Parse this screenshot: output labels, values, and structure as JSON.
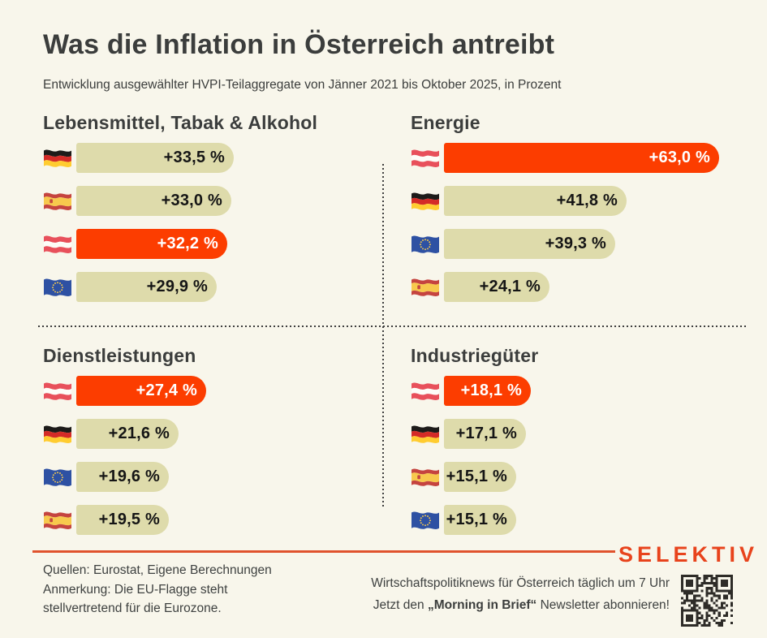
{
  "poster": {
    "title": "Was die Inflation in Österreich antreibt",
    "subtitle": "Entwicklung ausgewählter HVPI-Teilaggregate von Jänner 2021 bis Oktober 2025, in Prozent"
  },
  "colors": {
    "background": "#F8F6EB",
    "bar_default": "#DEDBAB",
    "bar_highlight": "#FC3D00",
    "heading_text": "#3B3D3C",
    "value_text_dark": "#151515",
    "value_text_light": "#FFFFFF",
    "accent_orange": "#E8431C",
    "divider": "#3F3F3F"
  },
  "chart_data": [
    {
      "type": "bar",
      "orientation": "horizontal",
      "title": "Lebensmittel, Tabak & Alkohol",
      "unit": "percent",
      "bars": [
        {
          "country": "Deutschland",
          "flag": "de",
          "flag_icon": "flag-germany-icon",
          "value": 33.5,
          "label": "+33,5 %",
          "highlight": false
        },
        {
          "country": "Spanien",
          "flag": "es",
          "flag_icon": "flag-spain-icon",
          "value": 33.0,
          "label": "+33,0 %",
          "highlight": false
        },
        {
          "country": "Österreich",
          "flag": "at",
          "flag_icon": "flag-austria-icon",
          "value": 32.2,
          "label": "+32,2 %",
          "highlight": true
        },
        {
          "country": "Eurozone",
          "flag": "eu",
          "flag_icon": "flag-european-union-icon",
          "value": 29.9,
          "label": "+29,9 %",
          "highlight": false
        }
      ]
    },
    {
      "type": "bar",
      "orientation": "horizontal",
      "title": "Energie",
      "unit": "percent",
      "bars": [
        {
          "country": "Österreich",
          "flag": "at",
          "flag_icon": "flag-austria-icon",
          "value": 63.0,
          "label": "+63,0 %",
          "highlight": true
        },
        {
          "country": "Deutschland",
          "flag": "de",
          "flag_icon": "flag-germany-icon",
          "value": 41.8,
          "label": "+41,8 %",
          "highlight": false
        },
        {
          "country": "Eurozone",
          "flag": "eu",
          "flag_icon": "flag-european-union-icon",
          "value": 39.3,
          "label": "+39,3 %",
          "highlight": false
        },
        {
          "country": "Spanien",
          "flag": "es",
          "flag_icon": "flag-spain-icon",
          "value": 24.1,
          "label": "+24,1 %",
          "highlight": false
        }
      ]
    },
    {
      "type": "bar",
      "orientation": "horizontal",
      "title": "Dienstleistungen",
      "unit": "percent",
      "bars": [
        {
          "country": "Österreich",
          "flag": "at",
          "flag_icon": "flag-austria-icon",
          "value": 27.4,
          "label": "+27,4 %",
          "highlight": true
        },
        {
          "country": "Deutschland",
          "flag": "de",
          "flag_icon": "flag-germany-icon",
          "value": 21.6,
          "label": "+21,6 %",
          "highlight": false
        },
        {
          "country": "Eurozone",
          "flag": "eu",
          "flag_icon": "flag-european-union-icon",
          "value": 19.6,
          "label": "+19,6 %",
          "highlight": false
        },
        {
          "country": "Spanien",
          "flag": "es",
          "flag_icon": "flag-spain-icon",
          "value": 19.5,
          "label": "+19,5 %",
          "highlight": false
        }
      ]
    },
    {
      "type": "bar",
      "orientation": "horizontal",
      "title": "Industriegüter",
      "unit": "percent",
      "bars": [
        {
          "country": "Österreich",
          "flag": "at",
          "flag_icon": "flag-austria-icon",
          "value": 18.1,
          "label": "+18,1 %",
          "highlight": true
        },
        {
          "country": "Deutschland",
          "flag": "de",
          "flag_icon": "flag-germany-icon",
          "value": 17.1,
          "label": "+17,1 %",
          "highlight": false
        },
        {
          "country": "Spanien",
          "flag": "es",
          "flag_icon": "flag-spain-icon",
          "value": 15.1,
          "label": "+15,1 %",
          "highlight": false
        },
        {
          "country": "Eurozone",
          "flag": "eu",
          "flag_icon": "flag-european-union-icon",
          "value": 15.1,
          "label": "+15,1 %",
          "highlight": false
        }
      ]
    }
  ],
  "footer": {
    "sources_line1": "Quellen: Eurostat, Eigene Berechnungen",
    "sources_line2": "Anmerkung: Die EU-Flagge steht",
    "sources_line3": "stellvertretend für die Eurozone.",
    "brand": "SELEKTIV",
    "promo_line1": "Wirtschaftspolitiknews für Österreich täglich um 7 Uhr",
    "promo_line2_prefix": "Jetzt den ",
    "promo_line2_bold": "„Morning in Brief“",
    "promo_line2_suffix": " Newsletter abonnieren!",
    "qr_icon": "qr-code-icon"
  }
}
